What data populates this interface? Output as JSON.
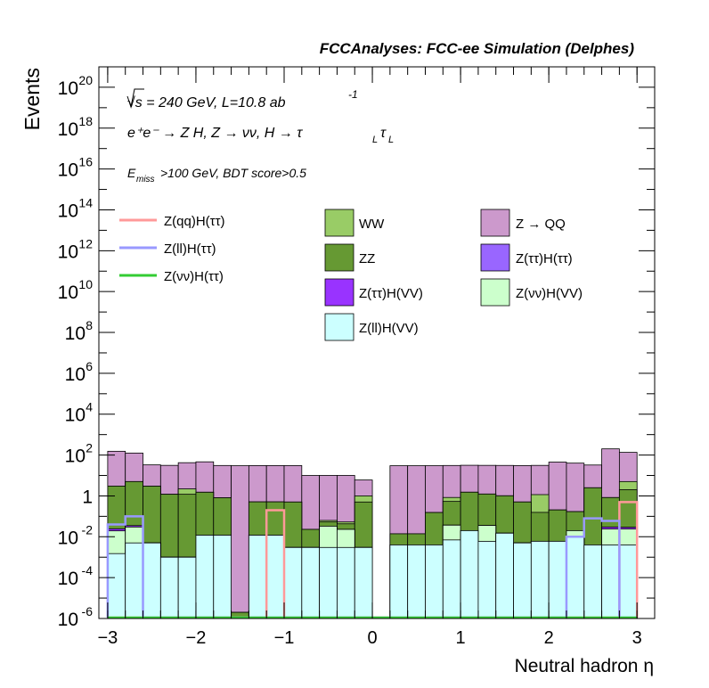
{
  "chart_data": {
    "type": "area",
    "title": "FCCAnalyses: FCC-ee Simulation (Delphes)",
    "xlabel": "Neutral hadron η",
    "ylabel": "Events",
    "xlim": [
      -3.1,
      3.2
    ],
    "ylim_log10": [
      -6,
      21
    ],
    "log_y": true,
    "grid": false,
    "xticks": [
      "−3",
      "−2",
      "−1",
      "0",
      "1",
      "2",
      "3"
    ],
    "yticks": [
      {
        "base": "10",
        "exp": "20"
      },
      {
        "base": "10",
        "exp": "18"
      },
      {
        "base": "10",
        "exp": "16"
      },
      {
        "base": "10",
        "exp": "14"
      },
      {
        "base": "10",
        "exp": "12"
      },
      {
        "base": "10",
        "exp": "10"
      },
      {
        "base": "10",
        "exp": "8"
      },
      {
        "base": "10",
        "exp": "6"
      },
      {
        "base": "10",
        "exp": "4"
      },
      {
        "base": "10",
        "exp": "2"
      },
      {
        "base": "1",
        "exp": ""
      },
      {
        "base": "10",
        "exp": "-2"
      },
      {
        "base": "10",
        "exp": "-4"
      },
      {
        "base": "10",
        "exp": "-6"
      }
    ],
    "annotations": {
      "line1": "√s = 240 GeV, L=10.8 ab",
      "line1_exp": "-1",
      "line2": "e⁺e⁻ → Z H, Z  → νν, H → τ",
      "line3": "E",
      "line3_sub": "miss",
      "line3_rest": ">100 GeV, BDT score>0.5"
    },
    "bin_edges": [
      -3.0,
      -2.8,
      -2.6,
      -2.4,
      -2.2,
      -2.0,
      -1.8,
      -1.6,
      -1.4,
      -1.2,
      -1.0,
      -0.8,
      -0.6,
      -0.4,
      -0.2,
      0.0,
      0.2,
      0.4,
      0.6,
      0.8,
      1.0,
      1.2,
      1.4,
      1.6,
      1.8,
      2.0,
      2.2,
      2.4,
      2.6,
      2.8,
      3.0
    ],
    "stack_series": [
      {
        "name": "Z(ll)H(VV)",
        "color": "#ccffff",
        "values": [
          0.0015,
          0.005,
          0.005,
          0.001,
          0.001,
          0.012,
          0.012,
          1e-06,
          0.012,
          0.012,
          0.003,
          0.003,
          0.003,
          0.003,
          0.003,
          1e-09,
          0.004,
          0.004,
          0.004,
          0.007,
          0.02,
          0.006,
          0.015,
          0.005,
          0.006,
          0.006,
          0.01,
          0.004,
          0.004,
          0.004
        ]
      },
      {
        "name": "Z(νν)H(VV)",
        "color": "#ccffcc",
        "values": [
          0.018,
          0.025,
          1e-09,
          1e-09,
          1e-09,
          1e-09,
          1e-09,
          1e-09,
          1e-09,
          1e-09,
          1e-09,
          1e-09,
          0.03,
          0.02,
          1e-09,
          1e-09,
          1e-09,
          1e-09,
          1e-09,
          0.03,
          1e-09,
          0.03,
          1e-09,
          1e-09,
          1e-09,
          1e-09,
          0.01,
          1e-09,
          0.02,
          0.02
        ]
      },
      {
        "name": "Z(ττ)H(VV)",
        "color": "#9933ff",
        "values": [
          0.005,
          0.005,
          1e-09,
          1e-09,
          1e-09,
          1e-09,
          1e-09,
          1e-09,
          1e-09,
          1e-09,
          1e-09,
          1e-09,
          1e-09,
          1e-09,
          1e-09,
          1e-09,
          1e-09,
          1e-09,
          1e-09,
          1e-09,
          1e-09,
          1e-09,
          1e-09,
          1e-09,
          1e-09,
          1e-09,
          1e-09,
          1e-09,
          0.006,
          0.005
        ]
      },
      {
        "name": "Z(ττ)H(ττ)",
        "color": "#9966ff",
        "values": [
          1e-09,
          1e-09,
          1e-09,
          1e-09,
          1e-09,
          1e-09,
          1e-09,
          1e-09,
          1e-09,
          1e-09,
          1e-09,
          1e-09,
          1e-09,
          1e-09,
          1e-09,
          1e-09,
          1e-09,
          1e-09,
          1e-09,
          1e-09,
          1e-09,
          1e-09,
          1e-09,
          1e-09,
          1e-09,
          1e-09,
          1e-09,
          1e-09,
          1e-09,
          1e-09
        ]
      },
      {
        "name": "ZZ",
        "color": "#669933",
        "values": [
          3,
          5,
          3,
          1.2,
          1.2,
          1.5,
          0.8,
          1e-06,
          0.5,
          0.5,
          0.5,
          0.02,
          0.02,
          0.02,
          0.5,
          1e-09,
          0.01,
          0.01,
          0.15,
          0.5,
          1.5,
          1.2,
          1,
          0.5,
          0.15,
          0.2,
          0.15,
          2.5,
          0.8,
          2
        ]
      },
      {
        "name": "WW",
        "color": "#99cc66",
        "values": [
          0.001,
          0.001,
          0.001,
          0.001,
          1,
          0.01,
          1e-09,
          1e-09,
          1e-09,
          1e-09,
          1e-09,
          1e-09,
          0.01,
          0.01,
          0.5,
          1e-09,
          1e-09,
          1e-09,
          1e-09,
          0.3,
          1e-09,
          1e-09,
          1e-09,
          1e-09,
          1,
          1e-09,
          1e-09,
          1e-09,
          1e-09,
          3
        ]
      },
      {
        "name": "Z → QQ",
        "color": "#cc99cc",
        "values": [
          150,
          120,
          30,
          30,
          40,
          45,
          30,
          30,
          30,
          30,
          30,
          10,
          10,
          10,
          5,
          1e-09,
          30,
          30,
          30,
          30,
          30,
          30,
          30,
          30,
          30,
          45,
          40,
          30,
          200,
          130
        ]
      }
    ],
    "line_series": [
      {
        "name": "Z(qq)H(ττ)",
        "color": "#ff9999",
        "values": [
          1e-09,
          1e-09,
          1e-09,
          1e-09,
          1e-09,
          1e-09,
          1e-09,
          1e-09,
          1e-09,
          0.2,
          1e-09,
          1e-09,
          1e-09,
          1e-09,
          1e-09,
          1e-09,
          1e-09,
          1e-09,
          1e-09,
          1e-09,
          1e-09,
          1e-09,
          1e-09,
          1e-09,
          1e-09,
          1e-09,
          1e-09,
          1e-09,
          1e-09,
          0.5
        ]
      },
      {
        "name": "Z(ll)H(ττ)",
        "color": "#9999ff",
        "values": [
          0.04,
          0.1,
          1e-09,
          1e-09,
          1e-09,
          1e-09,
          1e-09,
          1e-09,
          1e-09,
          1e-09,
          1e-09,
          1e-09,
          1e-09,
          1e-09,
          1e-09,
          1e-09,
          1e-09,
          1e-09,
          1e-09,
          1e-09,
          1e-09,
          1e-09,
          1e-09,
          1e-09,
          1e-09,
          1e-09,
          0.01,
          0.08,
          0.06,
          1e-09
        ]
      },
      {
        "name": "Z(νν)H(ττ)",
        "color": "#33cc33",
        "values": [
          1e-09,
          1e-09,
          1e-09,
          1e-09,
          1e-09,
          1e-09,
          1e-09,
          1e-09,
          1e-09,
          1e-09,
          1e-09,
          1e-09,
          1e-09,
          1e-09,
          1e-09,
          1e-09,
          1e-09,
          1e-09,
          1e-09,
          1e-09,
          1e-09,
          1e-09,
          1e-09,
          1e-09,
          1e-09,
          1e-09,
          1e-09,
          1e-09,
          1e-09,
          1e-09
        ]
      }
    ],
    "legend": {
      "placement": "top",
      "lines": [
        "Z(qq)H(ττ)",
        "Z(ll)H(ττ)",
        "Z(νν)H(ττ)"
      ],
      "fills_col1": [
        "WW",
        "ZZ",
        "Z(ττ)H(VV)",
        "Z(ll)H(VV)"
      ],
      "fills_col2": [
        "Z → QQ",
        "Z(ττ)H(ττ)",
        "Z(νν)H(VV)"
      ]
    }
  }
}
